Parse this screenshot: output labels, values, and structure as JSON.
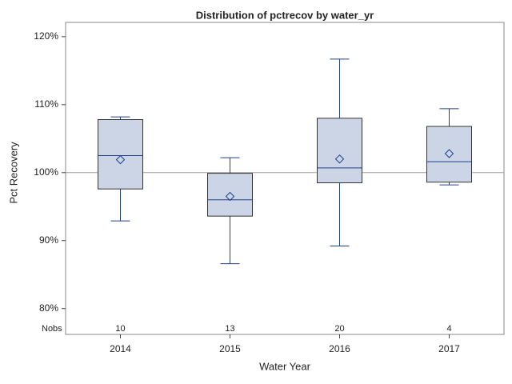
{
  "chart_data": {
    "type": "box",
    "title": "Distribution of pctrecov by water_yr",
    "x_label": "Water Year",
    "y_label": "Pct Recovery",
    "categories": [
      "2014",
      "2015",
      "2016",
      "2017"
    ],
    "min": [
      92.9,
      86.6,
      89.2,
      98.2
    ],
    "q1": [
      97.6,
      93.6,
      98.5,
      98.6
    ],
    "median": [
      102.5,
      96.0,
      100.7,
      101.6
    ],
    "q3": [
      107.8,
      99.9,
      108.0,
      106.8
    ],
    "max": [
      108.2,
      102.2,
      116.7,
      109.4
    ],
    "mean": [
      101.9,
      96.5,
      102.0,
      102.8
    ],
    "inset_label": "Nobs",
    "nobs": [
      10,
      13,
      20,
      4
    ],
    "reference_line": 100,
    "ylim": [
      76.2,
      122.1
    ],
    "yticks": [
      {
        "value": 80,
        "label": "80%"
      },
      {
        "value": 90,
        "label": "90%"
      },
      {
        "value": 100,
        "label": "100%"
      },
      {
        "value": 110,
        "label": "110%"
      },
      {
        "value": 120,
        "label": "120%"
      }
    ],
    "color": "#1f3f8f",
    "fill": "#cbd5e5",
    "reference_color": "#a0a0a0"
  }
}
